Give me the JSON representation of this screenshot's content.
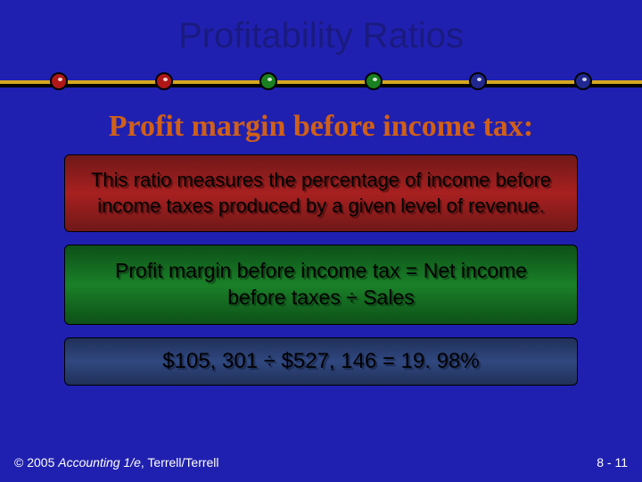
{
  "title": "Profitability Ratios",
  "title_color": "#1a1a80",
  "divider": {
    "line_top_color": "#d4a820",
    "line_bottom_color": "#000000",
    "dot_colors": [
      "#b01818",
      "#b01818",
      "#1a8020",
      "#1a8020",
      "#202890",
      "#202890"
    ]
  },
  "subtitle": {
    "text": "Profit margin before income tax:",
    "color": "#d06018"
  },
  "box1": {
    "text": "This ratio measures the percentage of income before income taxes produced by a given level of revenue.",
    "bg_gradient": [
      "#701818",
      "#a82020",
      "#701818"
    ],
    "fontsize": 22
  },
  "box2": {
    "text": "Profit margin before income tax = Net income before taxes ÷ Sales",
    "bg_gradient": [
      "#0d5018",
      "#1a8028",
      "#0d5018"
    ],
    "fontsize": 23
  },
  "box3": {
    "text": "$105, 301 ÷ $527, 146 = 19. 98%",
    "bg_gradient": [
      "#203058",
      "#304880",
      "#203058"
    ],
    "fontsize": 24
  },
  "footer": {
    "copyright_prefix": "© 2005 ",
    "copyright_italic": "Accounting 1/e",
    "copyright_suffix": ", Terrell/Terrell",
    "page": "8 - 11"
  },
  "background_color": "#2020b0"
}
